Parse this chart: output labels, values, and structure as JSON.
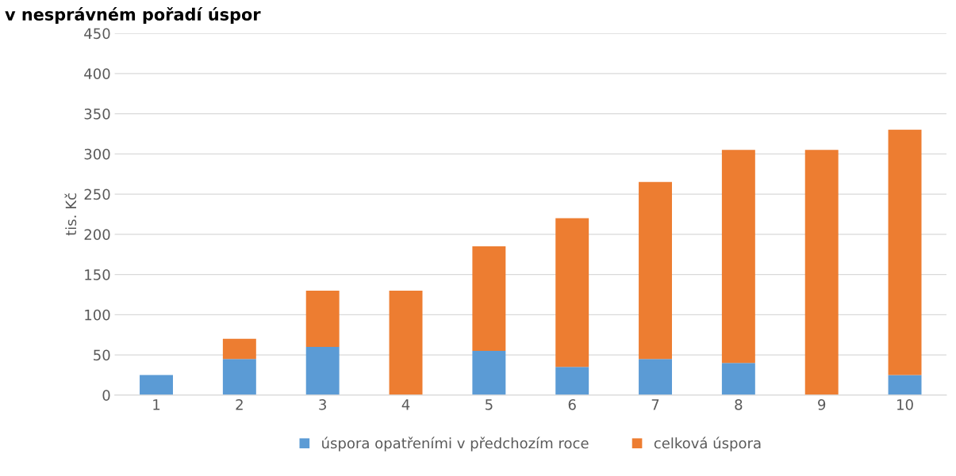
{
  "chart_data": {
    "type": "bar",
    "title": "v nesprávném pořadí úspor",
    "ylabel": "tis. Kč",
    "stacked": true,
    "categories": [
      "1",
      "2",
      "3",
      "4",
      "5",
      "6",
      "7",
      "8",
      "9",
      "10"
    ],
    "series": [
      {
        "name": "úspora opatřeními v předchozím roce",
        "color": "#5b9bd5",
        "values": [
          25,
          45,
          60,
          0,
          55,
          35,
          45,
          40,
          0,
          25
        ]
      },
      {
        "name": "celková úspora",
        "color": "#ed7d31",
        "values": [
          0,
          25,
          70,
          130,
          130,
          185,
          220,
          265,
          305,
          305
        ]
      }
    ],
    "ylim": [
      0,
      450
    ],
    "yticks": [
      0,
      50,
      100,
      150,
      200,
      250,
      300,
      350,
      400,
      450
    ],
    "grid": "y",
    "legend": "bottom"
  }
}
